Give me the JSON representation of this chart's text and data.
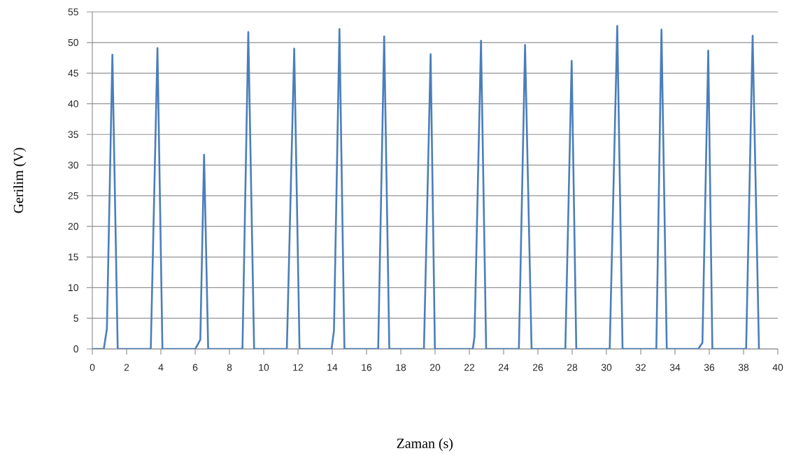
{
  "chart_data": {
    "type": "line",
    "xlabel": "Zaman (s)",
    "ylabel": "Gerilim (V)",
    "color": "#4a7ebb",
    "grid": "y",
    "xlim": [
      0,
      40
    ],
    "ylim": [
      0,
      55
    ],
    "xticks": [
      0,
      2,
      4,
      6,
      8,
      10,
      12,
      14,
      16,
      18,
      20,
      22,
      24,
      26,
      28,
      30,
      32,
      34,
      36,
      38,
      40
    ],
    "yticks": [
      0,
      5,
      10,
      15,
      20,
      25,
      30,
      35,
      40,
      45,
      50,
      55
    ],
    "x": [
      0,
      0.67,
      0.85,
      1.17,
      1.48,
      3.41,
      3.8,
      4.09,
      6.01,
      6.3,
      6.52,
      6.76,
      8.76,
      9.1,
      9.44,
      11.35,
      11.78,
      12.09,
      13.96,
      14.1,
      14.42,
      14.71,
      16.68,
      17.03,
      17.33,
      19.35,
      19.74,
      19.99,
      22.2,
      22.3,
      22.68,
      22.98,
      24.89,
      25.25,
      25.63,
      27.6,
      27.97,
      28.24,
      30.19,
      30.63,
      30.94,
      32.91,
      33.21,
      33.52,
      35.36,
      35.6,
      35.94,
      36.18,
      38.15,
      38.53,
      38.9
    ],
    "values": [
      0,
      0,
      3.3,
      48.0,
      0,
      0,
      49.1,
      0,
      0,
      1.5,
      31.7,
      0,
      0,
      51.7,
      0,
      0,
      49.0,
      0,
      0,
      3,
      52.2,
      0,
      0,
      51.0,
      0,
      0,
      48.1,
      0,
      0,
      2,
      50.3,
      0,
      0,
      49.6,
      0,
      0,
      47.0,
      0,
      0,
      52.7,
      0,
      0,
      52.1,
      0,
      0,
      1,
      48.7,
      0,
      0,
      51.1,
      0
    ]
  }
}
